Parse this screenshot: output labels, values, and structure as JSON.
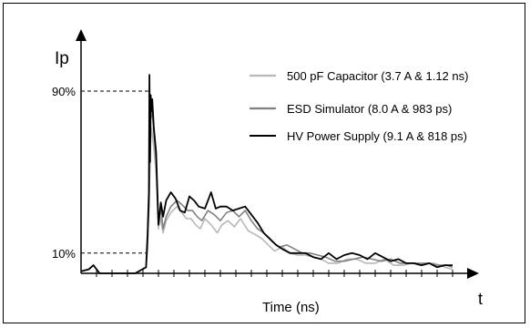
{
  "chart_data": {
    "type": "line",
    "title": "",
    "xlabel": "Time  (ns)",
    "xlabel_end": "t",
    "ylabel": "Ip",
    "y_reference_labels": [
      "90%",
      "10%"
    ],
    "y_reference_levels": [
      0.9,
      0.1
    ],
    "x_tick_count": 24,
    "xlim": [
      0,
      24
    ],
    "ylim": [
      0,
      1.1
    ],
    "grid": false,
    "legend_position": "top-right",
    "series": [
      {
        "name": "500 pF Capacitor (3.7 A & 1.12 ns)",
        "color": "#b8b8b8",
        "x": [
          0,
          0.5,
          0.8,
          1.2,
          3.5,
          4.2,
          4.3,
          4.35,
          4.45,
          4.55,
          4.7,
          4.85,
          5.0,
          5.1,
          5.3,
          5.5,
          5.8,
          6.2,
          6.5,
          6.8,
          7.1,
          7.4,
          7.7,
          8.0,
          8.4,
          8.8,
          9.1,
          9.5,
          9.9,
          10.3,
          10.8,
          11.3,
          11.7,
          12.1,
          12.5,
          13.0,
          13.5,
          14.0,
          14.5,
          15.0,
          15.5,
          16.0,
          16.6,
          17.2,
          17.8,
          18.4,
          19.0,
          19.6,
          20.2,
          20.8,
          21.4,
          21.9,
          22.3,
          22.8,
          23.5,
          24.0
        ],
        "values": [
          0.01,
          0.02,
          0.04,
          0.0,
          0.0,
          0.03,
          0.12,
          0.3,
          0.6,
          0.72,
          0.62,
          0.5,
          0.22,
          0.28,
          0.2,
          0.26,
          0.3,
          0.33,
          0.3,
          0.27,
          0.27,
          0.24,
          0.22,
          0.27,
          0.24,
          0.2,
          0.24,
          0.26,
          0.23,
          0.27,
          0.21,
          0.19,
          0.17,
          0.14,
          0.11,
          0.13,
          0.1,
          0.09,
          0.09,
          0.08,
          0.07,
          0.05,
          0.05,
          0.07,
          0.07,
          0.05,
          0.05,
          0.07,
          0.04,
          0.04,
          0.05,
          0.04,
          0.05,
          0.05,
          0.03,
          0.02
        ]
      },
      {
        "name": "ESD Simulator (8.0 A & 983 ps)",
        "color": "#808080",
        "x": [
          0,
          0.5,
          0.8,
          1.2,
          3.5,
          4.2,
          4.3,
          4.4,
          4.5,
          4.6,
          4.7,
          4.85,
          5.0,
          5.15,
          5.3,
          5.5,
          5.8,
          6.2,
          6.5,
          6.9,
          7.2,
          7.5,
          7.8,
          8.2,
          8.6,
          9.0,
          9.4,
          9.8,
          10.2,
          10.6,
          11.0,
          11.4,
          11.8,
          12.3,
          12.8,
          13.3,
          13.8,
          14.3,
          14.8,
          15.3,
          15.8,
          16.4,
          17.0,
          17.6,
          18.2,
          18.8,
          19.4,
          20.0,
          20.6,
          21.2,
          21.8,
          22.4,
          23.0,
          23.6,
          24.0
        ],
        "values": [
          0.01,
          0.02,
          0.04,
          0.0,
          0.0,
          0.03,
          0.15,
          0.35,
          0.76,
          0.8,
          0.7,
          0.56,
          0.25,
          0.32,
          0.22,
          0.28,
          0.33,
          0.36,
          0.34,
          0.31,
          0.31,
          0.28,
          0.26,
          0.31,
          0.29,
          0.26,
          0.3,
          0.31,
          0.28,
          0.31,
          0.26,
          0.22,
          0.2,
          0.16,
          0.13,
          0.14,
          0.12,
          0.1,
          0.1,
          0.09,
          0.08,
          0.06,
          0.06,
          0.07,
          0.08,
          0.07,
          0.06,
          0.07,
          0.05,
          0.05,
          0.05,
          0.05,
          0.04,
          0.04,
          0.03
        ]
      },
      {
        "name": "HV Power Supply (9.1 A & 818 ps)",
        "color": "#000000",
        "x": [
          0,
          0.5,
          0.8,
          1.2,
          3.5,
          4.2,
          4.3,
          4.38,
          4.42,
          4.46,
          4.5,
          4.55,
          4.6,
          4.7,
          4.85,
          5.0,
          5.15,
          5.3,
          5.5,
          5.8,
          6.1,
          6.4,
          6.7,
          7.0,
          7.3,
          7.6,
          8.0,
          8.4,
          8.7,
          9.0,
          9.4,
          9.8,
          10.2,
          10.6,
          11.0,
          11.4,
          11.8,
          12.2,
          12.6,
          13.0,
          13.5,
          14.0,
          14.5,
          15.0,
          15.5,
          16.0,
          16.5,
          17.0,
          17.5,
          18.0,
          18.5,
          19.0,
          19.5,
          20.0,
          20.5,
          21.0,
          21.5,
          22.0,
          22.5,
          23.0,
          23.5,
          24.0
        ],
        "values": [
          0.01,
          0.02,
          0.04,
          0.0,
          0.0,
          0.03,
          0.2,
          0.4,
          0.98,
          0.55,
          0.88,
          0.8,
          0.86,
          0.72,
          0.6,
          0.24,
          0.35,
          0.28,
          0.36,
          0.4,
          0.37,
          0.31,
          0.3,
          0.38,
          0.36,
          0.33,
          0.32,
          0.4,
          0.32,
          0.33,
          0.33,
          0.31,
          0.32,
          0.33,
          0.29,
          0.25,
          0.2,
          0.17,
          0.14,
          0.12,
          0.1,
          0.1,
          0.1,
          0.08,
          0.07,
          0.1,
          0.07,
          0.09,
          0.1,
          0.09,
          0.07,
          0.1,
          0.08,
          0.06,
          0.07,
          0.05,
          0.05,
          0.04,
          0.05,
          0.03,
          0.04,
          0.04
        ]
      }
    ]
  }
}
